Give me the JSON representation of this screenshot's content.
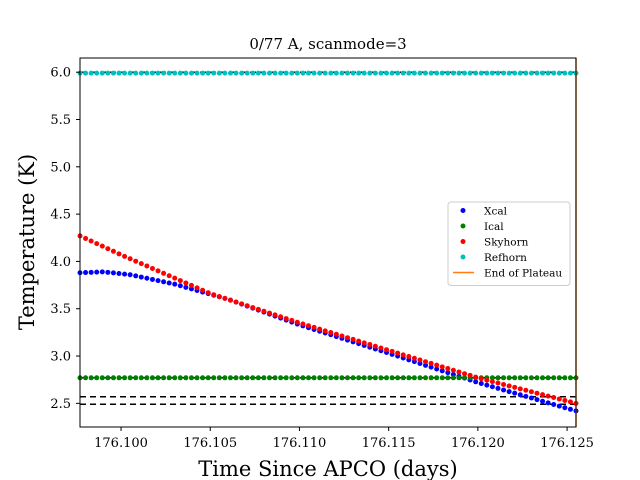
{
  "chart_data": {
    "type": "scatter",
    "title": "0/77 A, scanmode=3",
    "xlabel": "Time Since APCO (days)",
    "ylabel": "Temperature (K)",
    "xlim": [
      176.0977,
      176.1255
    ],
    "ylim": [
      2.25,
      6.15
    ],
    "x_ticks": [
      176.1,
      176.105,
      176.11,
      176.115,
      176.12,
      176.125
    ],
    "x_tick_labels": [
      "176.100",
      "176.105",
      "176.110",
      "176.115",
      "176.120",
      "176.125"
    ],
    "y_ticks": [
      2.5,
      3.0,
      3.5,
      4.0,
      4.5,
      5.0,
      5.5,
      6.0
    ],
    "y_tick_labels": [
      "2.5",
      "3.0",
      "3.5",
      "4.0",
      "4.5",
      "5.0",
      "5.5",
      "6.0"
    ],
    "grid": false,
    "legend_position": "center-right",
    "n_points": 90,
    "series": [
      {
        "name": "Xcal",
        "color": "#0000ff",
        "marker": "dot",
        "anchors": [
          [
            176.0977,
            3.88
          ],
          [
            176.099,
            3.89
          ],
          [
            176.1005,
            3.86
          ],
          [
            176.103,
            3.76
          ],
          [
            176.106,
            3.6
          ],
          [
            176.11,
            3.33
          ],
          [
            176.115,
            3.03
          ],
          [
            176.12,
            2.72
          ],
          [
            176.1255,
            2.42
          ]
        ]
      },
      {
        "name": "Ical",
        "color": "#008000",
        "marker": "dot",
        "anchors": [
          [
            176.0977,
            2.77
          ],
          [
            176.1255,
            2.77
          ]
        ]
      },
      {
        "name": "Skyhorn",
        "color": "#ff0000",
        "marker": "dot",
        "anchors": [
          [
            176.0977,
            4.27
          ],
          [
            176.1,
            4.07
          ],
          [
            176.105,
            3.66
          ],
          [
            176.11,
            3.35
          ],
          [
            176.115,
            3.06
          ],
          [
            176.12,
            2.77
          ],
          [
            176.1255,
            2.5
          ]
        ]
      },
      {
        "name": "Refhorn",
        "color": "#00bfbf",
        "marker": "dot",
        "anchors": [
          [
            176.0977,
            5.99
          ],
          [
            176.1255,
            5.99
          ]
        ]
      }
    ],
    "vlines": [
      {
        "name": "End of Plateau",
        "color": "#ff7f0e",
        "x": 176.1255
      }
    ],
    "hlines": [
      {
        "y": 6.0,
        "color": "#000000",
        "style": "dashed"
      },
      {
        "y": 2.77,
        "color": "#000000",
        "style": "dashed"
      },
      {
        "y": 2.57,
        "color": "#000000",
        "style": "dashed"
      },
      {
        "y": 2.49,
        "color": "#000000",
        "style": "dashed"
      }
    ]
  }
}
